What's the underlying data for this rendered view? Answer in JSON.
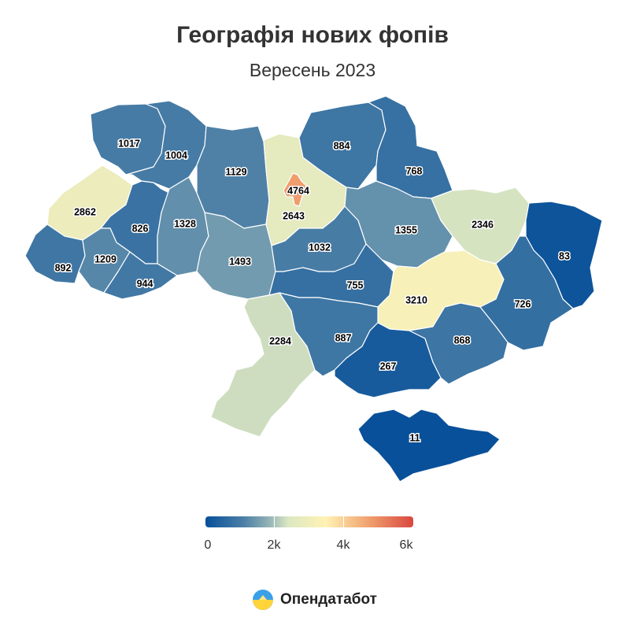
{
  "header": {
    "title": "Географія нових фопів",
    "subtitle": "Вересень 2023"
  },
  "legend": {
    "ticks": [
      "0",
      "2k",
      "4k",
      "6k"
    ]
  },
  "brand": {
    "name": "Опендатабот",
    "logo": "opendatabot-logo-icon"
  },
  "map_data": {
    "type": "choropleth",
    "scale": {
      "min": 0,
      "max": 6000,
      "palette": [
        "#08509a",
        "#4a7ea6",
        "#8fb0b5",
        "#dde8c2",
        "#fff2b4",
        "#f0a370",
        "#d9473f"
      ]
    },
    "regions": [
      {
        "id": "volyn",
        "value": "1017"
      },
      {
        "id": "rivne",
        "value": "1004"
      },
      {
        "id": "zhytomyr",
        "value": "1129"
      },
      {
        "id": "kyiv-oblast",
        "value": "2643"
      },
      {
        "id": "kyiv-city",
        "value": "4764"
      },
      {
        "id": "chernihiv",
        "value": "884"
      },
      {
        "id": "sumy",
        "value": "768"
      },
      {
        "id": "lviv",
        "value": "2862"
      },
      {
        "id": "ternopil",
        "value": "826"
      },
      {
        "id": "khmelnytskyi",
        "value": "1328"
      },
      {
        "id": "zakarpattia",
        "value": "892"
      },
      {
        "id": "ivano-frankivsk",
        "value": "1209"
      },
      {
        "id": "chernivtsi",
        "value": "944"
      },
      {
        "id": "vinnytsia",
        "value": "1493"
      },
      {
        "id": "cherkasy",
        "value": "1032"
      },
      {
        "id": "poltava",
        "value": "1355"
      },
      {
        "id": "kharkiv",
        "value": "2346"
      },
      {
        "id": "luhansk",
        "value": "83"
      },
      {
        "id": "kirovohrad",
        "value": "755"
      },
      {
        "id": "dnipropetrovsk",
        "value": "3210"
      },
      {
        "id": "donetsk",
        "value": "726"
      },
      {
        "id": "odesa",
        "value": "2284"
      },
      {
        "id": "mykolaiv",
        "value": "887"
      },
      {
        "id": "kherson",
        "value": "267"
      },
      {
        "id": "zaporizhzhia",
        "value": "868"
      },
      {
        "id": "crimea",
        "value": "11"
      }
    ]
  }
}
